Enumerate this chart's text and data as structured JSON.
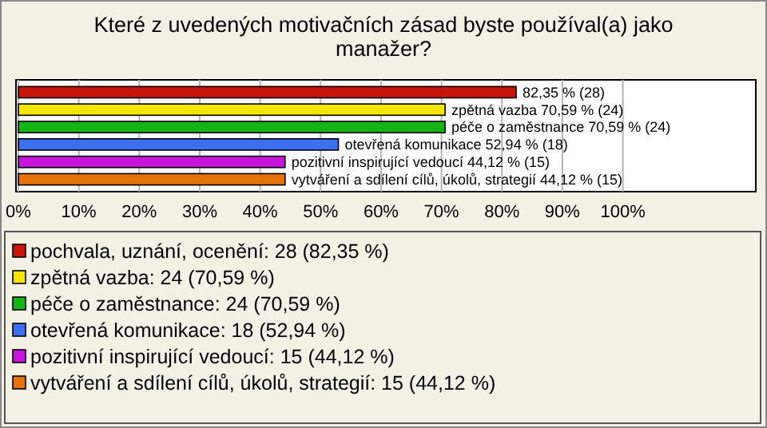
{
  "chart_data": {
    "type": "bar",
    "orientation": "horizontal",
    "title": "Které z uvedených motivačních zásad byste používal(a) jako manažer?",
    "categories": [
      null,
      null,
      null,
      null,
      null,
      null
    ],
    "series": [
      {
        "name": "pochvala, uznání, ocenění: 28 (82,35 %)",
        "color": "#c8140a",
        "values": [
          82.35,
          null,
          null,
          null,
          null,
          null
        ],
        "value_labels": [
          "82,35 % (28)",
          null,
          null,
          null,
          null,
          null
        ]
      },
      {
        "name": "zpětná vazba: 24 (70,59 %)",
        "color": "#f5e600",
        "values": [
          null,
          70.59,
          null,
          null,
          null,
          null
        ],
        "value_labels": [
          null,
          "zpětná vazba 70,59 % (24)",
          null,
          null,
          null,
          null
        ]
      },
      {
        "name": "péče o zaměstnance: 24 (70,59 %)",
        "color": "#14b414",
        "values": [
          null,
          null,
          70.59,
          null,
          null,
          null
        ],
        "value_labels": [
          null,
          null,
          "péče o zaměstnance 70,59 % (24)",
          null,
          null,
          null
        ]
      },
      {
        "name": "otevřená komunikace: 18 (52,94 %)",
        "color": "#3c6ef0",
        "values": [
          null,
          null,
          null,
          52.94,
          null,
          null
        ],
        "value_labels": [
          null,
          null,
          null,
          "otevřená komunikace 52,94 % (18)",
          null,
          null
        ]
      },
      {
        "name": "pozitivní inspirující vedoucí: 15 (44,12 %)",
        "color": "#c814dc",
        "values": [
          null,
          null,
          null,
          null,
          44.12,
          null
        ],
        "value_labels": [
          null,
          null,
          null,
          null,
          "pozitivní inspirující vedoucí 44,12 % (15)",
          null
        ]
      },
      {
        "name": "vytváření a sdílení cílů, úkolů, strategií: 15 (44,12 %)",
        "color": "#e6730a",
        "values": [
          null,
          null,
          null,
          null,
          null,
          44.12
        ],
        "value_labels": [
          null,
          null,
          null,
          null,
          null,
          "vytváření a sdílení cílů, úkolů, strategií 44,12 % (15)"
        ]
      }
    ],
    "xlim": [
      0,
      122
    ],
    "xticks": [
      {
        "value": 0,
        "label": "0%"
      },
      {
        "value": 10,
        "label": "10%"
      },
      {
        "value": 20,
        "label": "20%"
      },
      {
        "value": 30,
        "label": "30%"
      },
      {
        "value": 40,
        "label": "40%"
      },
      {
        "value": 50,
        "label": "50%"
      },
      {
        "value": 60,
        "label": "60%"
      },
      {
        "value": 70,
        "label": "70%"
      },
      {
        "value": 80,
        "label": "80%"
      },
      {
        "value": 90,
        "label": "90%"
      },
      {
        "value": 100,
        "label": "100%"
      }
    ],
    "grid": "x",
    "legend": "bottom",
    "tick_labels": "x"
  }
}
